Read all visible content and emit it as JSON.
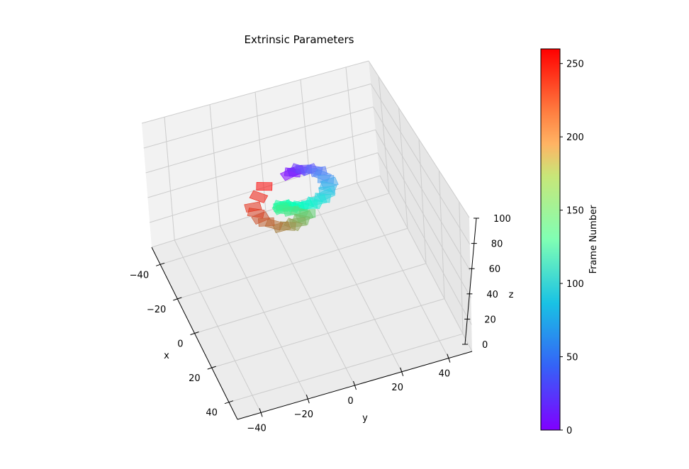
{
  "chart_data": {
    "type": "scatter",
    "title": "Extrinsic Parameters",
    "xlabel": "x",
    "ylabel": "y",
    "zlabel": "z",
    "x_ticks": [
      "−40",
      "−20",
      "0",
      "20",
      "40"
    ],
    "y_ticks": [
      "−40",
      "−20",
      "0",
      "20",
      "40"
    ],
    "z_ticks": [
      "0",
      "20",
      "40",
      "60",
      "80",
      "100"
    ],
    "xlim": [
      -50,
      50
    ],
    "ylim": [
      -50,
      50
    ],
    "zlim": [
      0,
      100
    ],
    "grid": true,
    "colorbar": {
      "label": "Frame Number",
      "colormap": "rainbow",
      "ticks": [
        "0",
        "50",
        "100",
        "150",
        "200",
        "250"
      ],
      "range": [
        0,
        260
      ]
    },
    "frame_range": [
      0,
      260
    ],
    "description_points": [
      {
        "frame": 0,
        "x": -5,
        "y": -3,
        "z": 95
      },
      {
        "frame": 20,
        "x": -6,
        "y": 2,
        "z": 95
      },
      {
        "frame": 40,
        "x": -2,
        "y": 8,
        "z": 96
      },
      {
        "frame": 60,
        "x": 6,
        "y": 10,
        "z": 96
      },
      {
        "frame": 80,
        "x": 12,
        "y": 6,
        "z": 96
      },
      {
        "frame": 100,
        "x": 14,
        "y": -1,
        "z": 96
      },
      {
        "frame": 120,
        "x": 13,
        "y": -7,
        "z": 96
      },
      {
        "frame": 140,
        "x": 10,
        "y": -12,
        "z": 96
      },
      {
        "frame": 160,
        "x": 12,
        "y": -13,
        "z": 96
      },
      {
        "frame": 180,
        "x": 18,
        "y": -4,
        "z": 96
      },
      {
        "frame": 200,
        "x": 22,
        "y": -10,
        "z": 97
      },
      {
        "frame": 215,
        "x": 22,
        "y": -16,
        "z": 97
      },
      {
        "frame": 230,
        "x": 16,
        "y": -22,
        "z": 97
      },
      {
        "frame": 245,
        "x": 8,
        "y": -24,
        "z": 97
      },
      {
        "frame": 258,
        "x": -2,
        "y": -15,
        "z": 96
      }
    ]
  }
}
